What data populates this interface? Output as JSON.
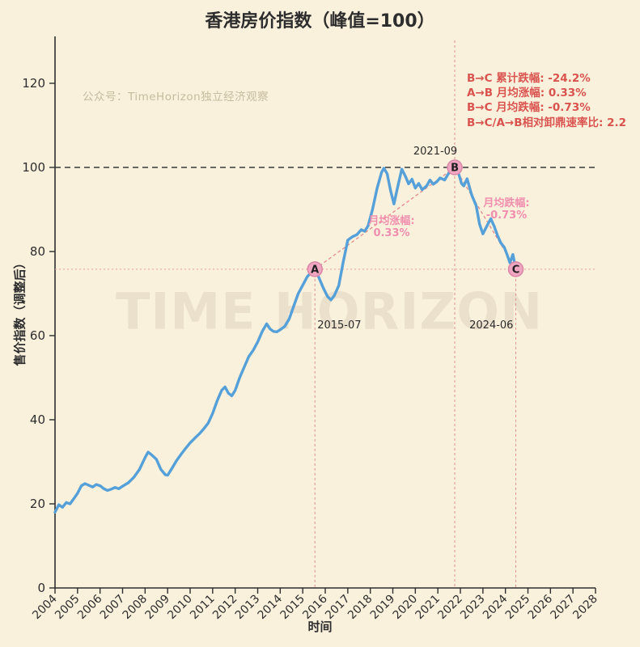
{
  "title": "香港房价指数（峰值=100）",
  "source_note": "公众号：TimeHorizon独立经济观察",
  "watermark": "TIME HORIZON",
  "stats": {
    "lines": [
      "B→C 累计跌幅: -24.2%",
      "A→B 月均涨幅: 0.33%",
      "B→C 月均跌幅: -0.73%",
      "B→C/A→B相对卸鼎速率比: 2.2"
    ],
    "color": "#d9534f"
  },
  "pink_annotations": {
    "rise_label": "月均涨幅:",
    "rise_value": "0.33%",
    "fall_label": "月均跌幅:",
    "fall_value": "-0.73%",
    "color": "#f08fae"
  },
  "chart_data": {
    "type": "line",
    "title": "香港房价指数（峰值=100）",
    "xlabel": "时间",
    "ylabel": "售价指数（调整后）",
    "xlim": [
      2004,
      2028
    ],
    "ylim": [
      0,
      130
    ],
    "x_ticks": [
      2004,
      2005,
      2006,
      2007,
      2008,
      2009,
      2010,
      2011,
      2012,
      2013,
      2014,
      2015,
      2016,
      2017,
      2018,
      2019,
      2020,
      2021,
      2022,
      2023,
      2024,
      2025,
      2026,
      2027,
      2028
    ],
    "y_ticks": [
      0,
      20,
      40,
      60,
      80,
      100,
      120
    ],
    "grid": false,
    "line_color": "#55a0d8",
    "reference_lines": {
      "peak_value": 100,
      "support_value": 75.8,
      "peak_style": "black-dashed",
      "support_style": "pink-dotted"
    },
    "key_points": [
      {
        "id": "A",
        "date": "2015-07",
        "x": 2015.54,
        "value": 75.8
      },
      {
        "id": "B",
        "date": "2021-09",
        "x": 2021.75,
        "value": 100.0
      },
      {
        "id": "C",
        "date": "2024-06",
        "x": 2024.46,
        "value": 75.8
      }
    ],
    "trend_segments": [
      [
        "A",
        "B"
      ],
      [
        "B",
        "C"
      ]
    ],
    "series": [
      {
        "name": "香港房价指数",
        "points": [
          [
            2004.0,
            18.0
          ],
          [
            2004.17,
            19.8
          ],
          [
            2004.33,
            19.2
          ],
          [
            2004.5,
            20.3
          ],
          [
            2004.67,
            20.0
          ],
          [
            2004.83,
            21.2
          ],
          [
            2005.0,
            22.5
          ],
          [
            2005.17,
            24.3
          ],
          [
            2005.33,
            24.8
          ],
          [
            2005.5,
            24.4
          ],
          [
            2005.67,
            24.0
          ],
          [
            2005.83,
            24.6
          ],
          [
            2006.0,
            24.3
          ],
          [
            2006.17,
            23.6
          ],
          [
            2006.33,
            23.2
          ],
          [
            2006.5,
            23.5
          ],
          [
            2006.67,
            23.9
          ],
          [
            2006.83,
            23.6
          ],
          [
            2007.0,
            24.2
          ],
          [
            2007.25,
            25.0
          ],
          [
            2007.5,
            26.3
          ],
          [
            2007.75,
            28.2
          ],
          [
            2008.0,
            31.0
          ],
          [
            2008.13,
            32.3
          ],
          [
            2008.3,
            31.6
          ],
          [
            2008.5,
            30.6
          ],
          [
            2008.7,
            28.2
          ],
          [
            2008.9,
            26.9
          ],
          [
            2009.0,
            26.8
          ],
          [
            2009.2,
            28.5
          ],
          [
            2009.4,
            30.3
          ],
          [
            2009.6,
            31.8
          ],
          [
            2009.8,
            33.2
          ],
          [
            2010.0,
            34.5
          ],
          [
            2010.2,
            35.6
          ],
          [
            2010.4,
            36.6
          ],
          [
            2010.6,
            37.8
          ],
          [
            2010.8,
            39.2
          ],
          [
            2011.0,
            41.5
          ],
          [
            2011.2,
            44.5
          ],
          [
            2011.4,
            47.0
          ],
          [
            2011.55,
            47.8
          ],
          [
            2011.7,
            46.3
          ],
          [
            2011.85,
            45.7
          ],
          [
            2012.0,
            47.0
          ],
          [
            2012.2,
            50.0
          ],
          [
            2012.4,
            52.5
          ],
          [
            2012.6,
            55.0
          ],
          [
            2012.8,
            56.5
          ],
          [
            2013.0,
            58.5
          ],
          [
            2013.2,
            61.0
          ],
          [
            2013.4,
            62.8
          ],
          [
            2013.55,
            61.6
          ],
          [
            2013.7,
            61.0
          ],
          [
            2013.85,
            60.9
          ],
          [
            2014.0,
            61.4
          ],
          [
            2014.2,
            62.2
          ],
          [
            2014.4,
            64.0
          ],
          [
            2014.6,
            67.0
          ],
          [
            2014.8,
            70.0
          ],
          [
            2015.0,
            72.0
          ],
          [
            2015.2,
            74.0
          ],
          [
            2015.4,
            75.2
          ],
          [
            2015.54,
            75.8
          ],
          [
            2015.7,
            74.0
          ],
          [
            2015.9,
            71.5
          ],
          [
            2016.1,
            69.3
          ],
          [
            2016.25,
            68.5
          ],
          [
            2016.4,
            69.5
          ],
          [
            2016.6,
            71.9
          ],
          [
            2016.8,
            77.6
          ],
          [
            2017.0,
            82.7
          ],
          [
            2017.2,
            83.5
          ],
          [
            2017.4,
            84.0
          ],
          [
            2017.6,
            85.2
          ],
          [
            2017.75,
            84.8
          ],
          [
            2017.9,
            86.1
          ],
          [
            2018.1,
            90.0
          ],
          [
            2018.3,
            95.0
          ],
          [
            2018.5,
            98.8
          ],
          [
            2018.6,
            99.8
          ],
          [
            2018.75,
            98.5
          ],
          [
            2018.9,
            94.5
          ],
          [
            2019.05,
            91.3
          ],
          [
            2019.2,
            95.0
          ],
          [
            2019.4,
            99.6
          ],
          [
            2019.55,
            98.0
          ],
          [
            2019.7,
            96.1
          ],
          [
            2019.85,
            97.2
          ],
          [
            2020.0,
            95.1
          ],
          [
            2020.15,
            96.2
          ],
          [
            2020.3,
            94.7
          ],
          [
            2020.5,
            95.6
          ],
          [
            2020.65,
            97.0
          ],
          [
            2020.8,
            96.0
          ],
          [
            2020.95,
            96.6
          ],
          [
            2021.1,
            97.5
          ],
          [
            2021.3,
            97.0
          ],
          [
            2021.5,
            98.8
          ],
          [
            2021.65,
            99.5
          ],
          [
            2021.75,
            100.0
          ],
          [
            2021.9,
            98.9
          ],
          [
            2022.05,
            96.2
          ],
          [
            2022.15,
            95.6
          ],
          [
            2022.3,
            97.3
          ],
          [
            2022.5,
            93.5
          ],
          [
            2022.7,
            90.9
          ],
          [
            2022.85,
            86.5
          ],
          [
            2023.0,
            84.2
          ],
          [
            2023.2,
            86.3
          ],
          [
            2023.35,
            87.8
          ],
          [
            2023.5,
            86.0
          ],
          [
            2023.65,
            83.8
          ],
          [
            2023.8,
            82.0
          ],
          [
            2023.95,
            81.0
          ],
          [
            2024.1,
            78.9
          ],
          [
            2024.2,
            77.3
          ],
          [
            2024.33,
            79.3
          ],
          [
            2024.46,
            75.8
          ]
        ]
      }
    ],
    "marker_fill": "#f0a6c0",
    "marker_stroke": "#da86a6"
  }
}
